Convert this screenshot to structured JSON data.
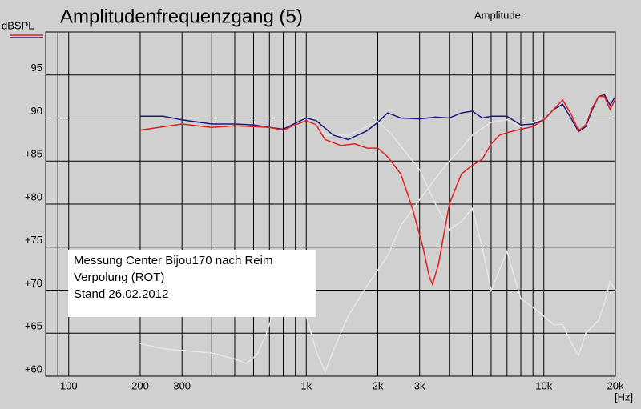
{
  "chart_data": {
    "type": "line",
    "title": "Amplitudenfrequenzgang (5)",
    "y_label": "dBSPL",
    "x_label": "[Hz]",
    "annotation_right": "Amplitude",
    "annotation_right_color": "#e02020",
    "note_lines": [
      "Messung Center Bijou170 nach Reim",
      "Verpolung (ROT)",
      "Stand 26.02.2012"
    ],
    "log_x": true,
    "grid": true,
    "xlim": [
      80,
      20000
    ],
    "ylim": [
      60,
      100
    ],
    "xticks": [
      {
        "value": 100,
        "label": "100"
      },
      {
        "value": 200,
        "label": "200"
      },
      {
        "value": 300,
        "label": "300"
      },
      {
        "value": 1000,
        "label": "1k"
      },
      {
        "value": 2000,
        "label": "2k"
      },
      {
        "value": 3000,
        "label": "3k"
      },
      {
        "value": 10000,
        "label": "10k"
      },
      {
        "value": 20000,
        "label": "20k"
      }
    ],
    "minor_xticks": [
      90,
      400,
      500,
      600,
      700,
      800,
      900,
      4000,
      5000,
      6000,
      7000,
      8000,
      9000
    ],
    "yticks": [
      {
        "value": 60,
        "label": "+60"
      },
      {
        "value": 65,
        "label": "+65"
      },
      {
        "value": 70,
        "label": "+70"
      },
      {
        "value": 75,
        "label": "+75"
      },
      {
        "value": 80,
        "label": "+80"
      },
      {
        "value": 85,
        "label": "+85"
      },
      90,
      95
    ],
    "series": [
      {
        "color": "#e6e6e6",
        "x": [
          200,
          250,
          300,
          400,
          500,
          560,
          620,
          680,
          720,
          1000,
          1100,
          1200,
          1300,
          1500,
          1800,
          2200,
          2500,
          3000,
          3500,
          4000,
          4500,
          5000,
          6000,
          7000,
          8000,
          10000
        ],
        "values": [
          63.8,
          63.2,
          63.0,
          62.7,
          62.0,
          61.5,
          62.5,
          65,
          67,
          67,
          63,
          60.5,
          63,
          67,
          70.5,
          74,
          77.5,
          80.5,
          83,
          85,
          86.5,
          88,
          89.5,
          89.8,
          89.0,
          89.9
        ]
      },
      {
        "color": "#e6e6e6",
        "x": [
          1000,
          1200,
          1500,
          2000,
          2300,
          3000,
          3500,
          4000,
          4500,
          5000,
          5500,
          6000,
          7000,
          8000,
          9000,
          10000,
          11000,
          12000,
          13000,
          14000,
          15000,
          17000,
          18000,
          19000,
          20000
        ],
        "values": [
          90,
          88,
          88,
          89.6,
          88,
          84,
          80,
          77,
          78,
          79.5,
          75,
          70,
          74.5,
          69,
          68,
          67,
          66,
          66,
          64,
          62.4,
          65,
          66.5,
          68.5,
          71,
          70
        ]
      },
      {
        "color": "#1a1a80",
        "x": [
          200,
          250,
          300,
          400,
          500,
          600,
          700,
          800,
          900,
          1000,
          1100,
          1300,
          1500,
          1800,
          2000,
          2200,
          2500,
          3000,
          3500,
          4000,
          4500,
          5000,
          5500,
          6000,
          7000,
          8000,
          9000,
          10000,
          11000,
          12000,
          13000,
          14000,
          15000,
          16000,
          17000,
          18000,
          19000,
          20000
        ],
        "values": [
          90.2,
          90.2,
          89.8,
          89.3,
          89.3,
          89.2,
          88.9,
          88.7,
          89.4,
          90.0,
          89.7,
          88.0,
          87.5,
          88.5,
          89.5,
          90.6,
          90.0,
          89.9,
          90.1,
          90.0,
          90.6,
          90.8,
          90.0,
          90.2,
          90.2,
          89.2,
          89.3,
          89.8,
          91.0,
          91.6,
          90.0,
          88.4,
          89.0,
          91.0,
          92.5,
          92.7,
          91.5,
          92.5
        ]
      },
      {
        "color": "#e02020",
        "x": [
          200,
          300,
          400,
          500,
          600,
          700,
          800,
          900,
          1000,
          1100,
          1200,
          1400,
          1600,
          1800,
          2000,
          2200,
          2500,
          2800,
          3100,
          3300,
          3400,
          3600,
          4000,
          4500,
          5000,
          5500,
          6000,
          6500,
          7000,
          8000,
          9000,
          10000,
          11000,
          12000,
          13000,
          14000,
          15000,
          16000,
          17000,
          18000,
          19000,
          20000
        ],
        "values": [
          88.6,
          89.3,
          88.9,
          89.1,
          89.0,
          88.9,
          88.6,
          89.2,
          89.7,
          89.2,
          87.5,
          86.8,
          87.0,
          86.5,
          86.5,
          85.5,
          83.5,
          79.5,
          75.0,
          71.5,
          70.7,
          73.0,
          80.0,
          83.5,
          84.5,
          85.2,
          87.0,
          88.0,
          88.3,
          88.7,
          89.0,
          89.8,
          91.0,
          92.1,
          90.5,
          88.5,
          89.2,
          91.2,
          92.5,
          92.5,
          91.0,
          92.2
        ]
      }
    ]
  }
}
